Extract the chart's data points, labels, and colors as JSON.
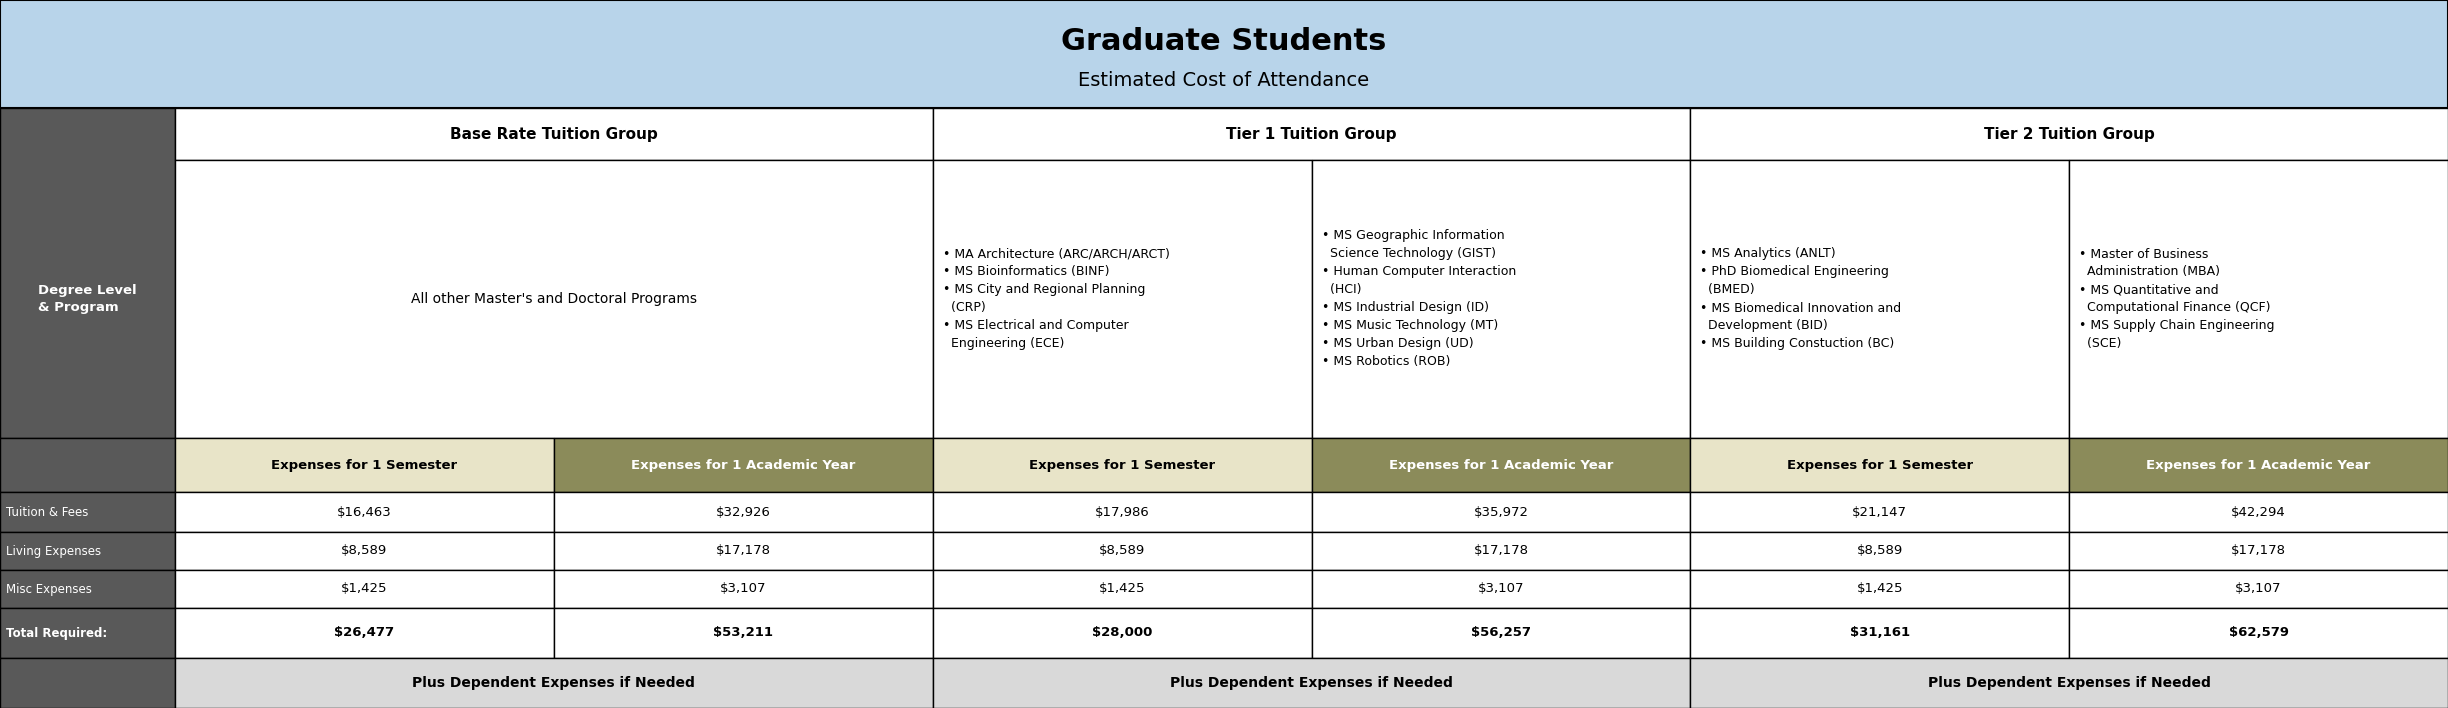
{
  "title": "Graduate Students",
  "subtitle": "Estimated Cost of Attendance",
  "header_bg": "#b8d4ea",
  "dark_gray": "#595959",
  "olive_tan": "#8b8b5a",
  "light_tan": "#e8e4c8",
  "light_gray": "#d9d9d9",
  "white": "#ffffff",
  "black": "#000000",
  "groups": [
    {
      "name": "Base Rate Tuition Group",
      "col1_programs": "All other Master's and Doctoral Programs",
      "col2_programs": "",
      "tuition": "$16,463",
      "tuition_year": "$32,926",
      "living": "$8,589",
      "living_year": "$17,178",
      "misc": "$1,425",
      "misc_year": "$3,107",
      "total": "$26,477",
      "total_year": "$53,211"
    },
    {
      "name": "Tier 1 Tuition Group",
      "col1_programs": "• MA Architecture (ARC/ARCH/ARCT)\n• MS Bioinformatics (BINF)\n• MS City and Regional Planning\n  (CRP)\n• MS Electrical and Computer\n  Engineering (ECE)",
      "col2_programs": "• MS Geographic Information\n  Science Technology (GIST)\n• Human Computer Interaction\n  (HCI)\n• MS Industrial Design (ID)\n• MS Music Technology (MT)\n• MS Urban Design (UD)\n• MS Robotics (ROB)",
      "tuition": "$17,986",
      "tuition_year": "$35,972",
      "living": "$8,589",
      "living_year": "$17,178",
      "misc": "$1,425",
      "misc_year": "$3,107",
      "total": "$28,000",
      "total_year": "$56,257"
    },
    {
      "name": "Tier 2 Tuition Group",
      "col1_programs": "• MS Analytics (ANLT)\n• PhD Biomedical Engineering\n  (BMED)\n• MS Biomedical Innovation and\n  Development (BID)\n• MS Building Constuction (BC)",
      "col2_programs": "• Master of Business\n  Administration (MBA)\n• MS Quantitative and\n  Computational Finance (QCF)\n• MS Supply Chain Engineering\n  (SCE)",
      "tuition": "$21,147",
      "tuition_year": "$42,294",
      "living": "$8,589",
      "living_year": "$17,178",
      "misc": "$1,425",
      "misc_year": "$3,107",
      "total": "$31,161",
      "total_year": "$62,579"
    }
  ]
}
